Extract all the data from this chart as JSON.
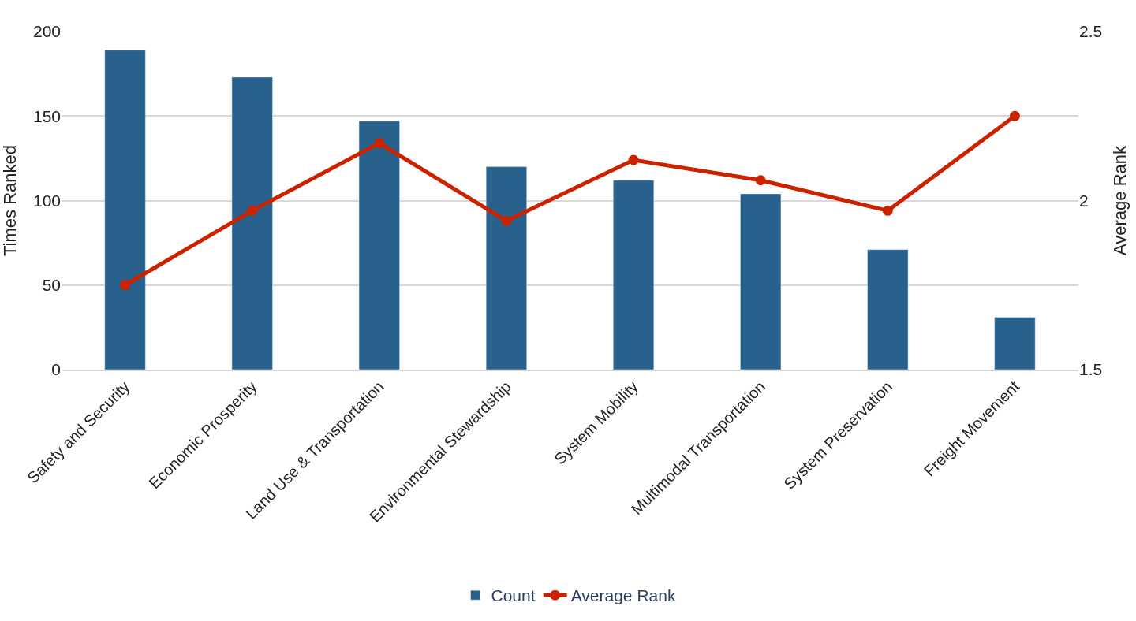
{
  "chart_data": {
    "type": "bar",
    "ylabel": "Times Ranked",
    "y2label": "Average Rank",
    "categories": [
      "Safety and Security",
      "Economic Prosperity",
      "Land Use & Transportation",
      "Environmental Stewardship",
      "System Mobility",
      "Multimodal Transportation",
      "System Preservation",
      "Freight Movement"
    ],
    "series": [
      {
        "name": "Count",
        "color": "#28628c",
        "values": [
          189,
          173,
          147,
          120,
          112,
          104,
          71,
          31
        ]
      },
      {
        "name": "Average Rank",
        "type": "line",
        "axis": "y2",
        "color": "#cc2200",
        "marker": "circle",
        "values": [
          1.75,
          1.97,
          2.17,
          1.94,
          2.12,
          2.06,
          1.97,
          2.25
        ]
      }
    ],
    "ylim": [
      0,
      200
    ],
    "yticks": [
      0,
      50,
      100,
      150,
      200
    ],
    "y2lim": [
      1.5,
      2.5
    ],
    "y2ticks": [
      1.5,
      2,
      2.5
    ],
    "grid": "y",
    "legend": "bottom"
  }
}
